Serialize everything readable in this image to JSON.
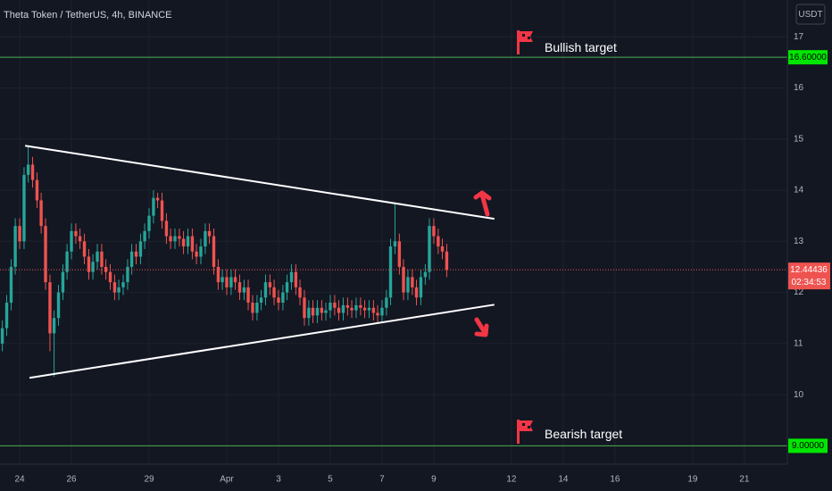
{
  "chart_data": {
    "type": "candlestick",
    "title": "Theta Token / TetherUS, 4h, BINANCE",
    "quote_currency": "USDT",
    "xlim": [
      -0.76,
      29.66
    ],
    "xticks": [
      {
        "value": 0,
        "label": "24"
      },
      {
        "value": 2,
        "label": "26"
      },
      {
        "value": 5,
        "label": "29"
      },
      {
        "value": 8,
        "label": "Apr"
      },
      {
        "value": 10,
        "label": "3"
      },
      {
        "value": 12,
        "label": "5"
      },
      {
        "value": 14,
        "label": "7"
      },
      {
        "value": 16,
        "label": "9"
      },
      {
        "value": 19,
        "label": "12"
      },
      {
        "value": 21,
        "label": "14"
      },
      {
        "value": 23,
        "label": "16"
      },
      {
        "value": 26,
        "label": "19"
      },
      {
        "value": 28,
        "label": "21"
      }
    ],
    "ylim": [
      8.64,
      17.72
    ],
    "yticks": [
      10,
      11,
      12,
      13,
      14,
      15,
      16,
      17
    ],
    "grid": true,
    "up_color": "#26a69a",
    "down_color": "#ef5350",
    "candles": {
      "x": [
        -0.67,
        -0.5,
        -0.33,
        -0.17,
        0,
        0.17,
        0.33,
        0.5,
        0.67,
        0.83,
        1,
        1.17,
        1.33,
        1.5,
        1.67,
        1.83,
        2,
        2.17,
        2.33,
        2.5,
        2.67,
        2.83,
        3,
        3.17,
        3.33,
        3.5,
        3.67,
        3.83,
        4,
        4.17,
        4.33,
        4.5,
        4.67,
        4.83,
        5,
        5.17,
        5.33,
        5.5,
        5.67,
        5.83,
        6,
        6.17,
        6.33,
        6.5,
        6.67,
        6.83,
        7,
        7.17,
        7.33,
        7.5,
        7.67,
        7.83,
        8,
        8.17,
        8.33,
        8.5,
        8.67,
        8.83,
        9,
        9.17,
        9.33,
        9.5,
        9.67,
        9.83,
        10,
        10.17,
        10.33,
        10.5,
        10.67,
        10.83,
        11,
        11.17,
        11.33,
        11.5,
        11.67,
        11.83,
        12,
        12.17,
        12.33,
        12.5,
        12.67,
        12.83,
        13,
        13.17,
        13.33,
        13.5,
        13.67,
        13.83,
        14,
        14.17,
        14.33,
        14.5,
        14.67,
        14.83,
        15,
        15.17,
        15.33,
        15.5,
        15.67,
        15.83,
        16,
        16.17,
        16.33,
        16.5
      ],
      "open": [
        11.0,
        11.3,
        11.8,
        12.5,
        13.3,
        13.0,
        14.3,
        14.5,
        14.2,
        13.8,
        13.3,
        12.2,
        11.2,
        11.5,
        12.0,
        12.4,
        12.8,
        13.2,
        13.1,
        13.0,
        12.7,
        12.4,
        12.6,
        12.8,
        12.5,
        12.4,
        12.2,
        12.0,
        12.1,
        12.2,
        12.5,
        12.8,
        12.7,
        13.0,
        13.2,
        13.5,
        13.85,
        13.8,
        13.4,
        13.1,
        13.0,
        13.1,
        13.05,
        12.9,
        13.1,
        12.8,
        12.7,
        12.9,
        13.2,
        13.1,
        12.5,
        12.2,
        12.3,
        12.1,
        12.3,
        12.2,
        12.0,
        12.1,
        11.8,
        11.6,
        11.8,
        11.9,
        12.2,
        12.1,
        11.9,
        11.8,
        12.0,
        12.2,
        12.4,
        12.1,
        11.9,
        11.5,
        11.7,
        11.55,
        11.7,
        11.6,
        11.65,
        11.8,
        11.7,
        11.6,
        11.75,
        11.7,
        11.65,
        11.75,
        11.7,
        11.65,
        11.7,
        11.6,
        11.55,
        11.7,
        11.9,
        12.9,
        13.0,
        12.5,
        12.0,
        12.3,
        12.1,
        11.9,
        12.3,
        12.4,
        13.3,
        13.1,
        12.9,
        12.8
      ],
      "high": [
        11.45,
        11.95,
        12.65,
        13.45,
        13.45,
        14.45,
        14.85,
        14.65,
        14.35,
        13.95,
        13.45,
        12.35,
        11.65,
        12.15,
        12.55,
        12.95,
        13.35,
        13.35,
        13.25,
        13.15,
        12.85,
        12.75,
        12.95,
        12.95,
        12.65,
        12.55,
        12.35,
        12.25,
        12.35,
        12.65,
        12.95,
        12.95,
        13.15,
        13.35,
        13.65,
        14.0,
        13.95,
        13.95,
        13.55,
        13.25,
        13.25,
        13.25,
        13.2,
        13.25,
        13.25,
        12.95,
        13.05,
        13.35,
        13.35,
        13.25,
        12.65,
        12.45,
        12.45,
        12.45,
        12.45,
        12.35,
        12.25,
        12.25,
        11.95,
        11.95,
        12.05,
        12.35,
        12.35,
        12.25,
        12.05,
        12.15,
        12.35,
        12.55,
        12.55,
        12.25,
        12.05,
        11.85,
        11.85,
        11.85,
        11.85,
        11.8,
        11.95,
        11.95,
        11.85,
        11.9,
        11.9,
        11.85,
        11.9,
        11.9,
        11.85,
        11.85,
        11.85,
        11.75,
        11.85,
        12.05,
        13.05,
        13.75,
        13.15,
        12.65,
        12.45,
        12.45,
        12.25,
        12.45,
        12.55,
        13.45,
        13.45,
        13.25,
        13.05,
        12.95
      ],
      "low": [
        10.85,
        11.15,
        11.65,
        12.35,
        12.85,
        12.85,
        14.15,
        14.05,
        13.65,
        13.15,
        12.05,
        10.85,
        10.35,
        11.35,
        11.85,
        12.25,
        12.65,
        12.95,
        12.85,
        12.55,
        12.25,
        12.25,
        12.45,
        12.35,
        12.25,
        12.05,
        11.85,
        11.85,
        11.95,
        12.05,
        12.35,
        12.55,
        12.55,
        12.85,
        13.05,
        13.35,
        13.65,
        13.25,
        12.95,
        12.85,
        12.85,
        12.9,
        12.75,
        12.75,
        12.65,
        12.55,
        12.55,
        12.75,
        12.95,
        12.35,
        12.05,
        12.05,
        11.95,
        11.95,
        12.05,
        11.85,
        11.85,
        11.65,
        11.45,
        11.45,
        11.65,
        11.75,
        11.95,
        11.75,
        11.65,
        11.65,
        11.85,
        12.05,
        11.95,
        11.75,
        11.35,
        11.35,
        11.4,
        11.4,
        11.45,
        11.45,
        11.5,
        11.55,
        11.45,
        11.45,
        11.55,
        11.5,
        11.5,
        11.55,
        11.5,
        11.5,
        11.45,
        11.4,
        11.4,
        11.55,
        11.75,
        12.75,
        12.35,
        11.85,
        11.85,
        11.95,
        11.75,
        11.75,
        12.15,
        12.25,
        12.95,
        12.75,
        12.65,
        12.3
      ],
      "close": [
        11.3,
        11.8,
        12.5,
        13.3,
        13.0,
        14.3,
        14.5,
        14.2,
        13.8,
        13.3,
        12.2,
        11.2,
        11.5,
        12.0,
        12.4,
        12.8,
        13.2,
        13.1,
        13.0,
        12.7,
        12.4,
        12.6,
        12.8,
        12.5,
        12.4,
        12.2,
        12.0,
        12.1,
        12.2,
        12.5,
        12.8,
        12.7,
        13.0,
        13.2,
        13.5,
        13.85,
        13.8,
        13.4,
        13.1,
        13.0,
        13.1,
        13.05,
        12.9,
        13.1,
        12.8,
        12.7,
        12.9,
        13.2,
        13.1,
        12.5,
        12.2,
        12.3,
        12.1,
        12.3,
        12.2,
        12.0,
        12.1,
        11.8,
        11.6,
        11.8,
        11.9,
        12.2,
        12.1,
        11.9,
        11.8,
        12.0,
        12.2,
        12.4,
        12.1,
        11.9,
        11.5,
        11.7,
        11.55,
        11.7,
        11.6,
        11.65,
        11.8,
        11.7,
        11.6,
        11.75,
        11.7,
        11.65,
        11.75,
        11.7,
        11.65,
        11.7,
        11.6,
        11.55,
        11.7,
        11.9,
        12.9,
        13.0,
        12.5,
        12.0,
        12.3,
        12.1,
        11.9,
        12.3,
        12.4,
        13.3,
        13.1,
        12.9,
        12.8,
        12.44436
      ]
    },
    "countdown": "02:34:53",
    "levels": [
      {
        "value": 16.6,
        "label": "16.60000",
        "annotation": "Bullish target",
        "color": "#4caf50"
      },
      {
        "value": 9.0,
        "label": "9.00000",
        "annotation": "Bearish target",
        "color": "#4caf50"
      }
    ],
    "trendlines": [
      {
        "x": [
          0.21,
          18.34
        ],
        "y": [
          14.87,
          13.44
        ],
        "color": "#ffffff"
      },
      {
        "x": [
          0.38,
          18.34
        ],
        "y": [
          10.33,
          11.76
        ],
        "color": "#ffffff"
      }
    ]
  }
}
